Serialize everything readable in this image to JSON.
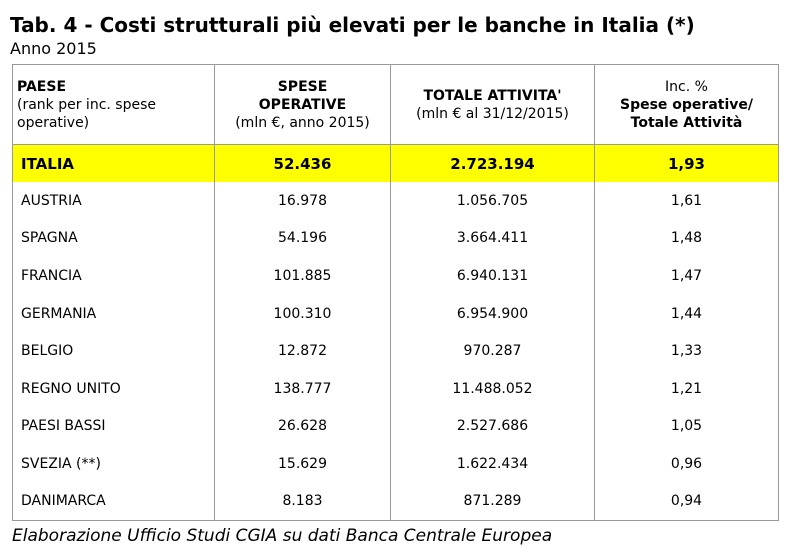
{
  "chart_data": {
    "type": "table",
    "title": "Tab. 4 - Costi strutturali più elevati per le banche in Italia (*)",
    "subtitle": "Anno 2015",
    "headers": {
      "country": {
        "title": "PAESE",
        "note1": "(rank per inc. spese",
        "note2": "operative)"
      },
      "expenses": {
        "title1": "SPESE",
        "title2": "OPERATIVE",
        "unit": "(mln €, anno 2015)"
      },
      "assets": {
        "title": "TOTALE ATTIVITA'",
        "unit": "(mln € al 31/12/2015)"
      },
      "ratio": {
        "line1": "Inc. %",
        "line2": "Spese operative/",
        "line3": "Totale Attività"
      }
    },
    "rows": [
      {
        "country": "ITALIA",
        "expenses": "52.436",
        "assets": "2.723.194",
        "ratio": "1,93",
        "highlight": true
      },
      {
        "country": "AUSTRIA",
        "expenses": "16.978",
        "assets": "1.056.705",
        "ratio": "1,61"
      },
      {
        "country": "SPAGNA",
        "expenses": "54.196",
        "assets": "3.664.411",
        "ratio": "1,48"
      },
      {
        "country": "FRANCIA",
        "expenses": "101.885",
        "assets": "6.940.131",
        "ratio": "1,47"
      },
      {
        "country": "GERMANIA",
        "expenses": "100.310",
        "assets": "6.954.900",
        "ratio": "1,44"
      },
      {
        "country": "BELGIO",
        "expenses": "12.872",
        "assets": "970.287",
        "ratio": "1,33"
      },
      {
        "country": "REGNO UNITO",
        "expenses": "138.777",
        "assets": "11.488.052",
        "ratio": "1,21"
      },
      {
        "country": "PAESI BASSI",
        "expenses": "26.628",
        "assets": "2.527.686",
        "ratio": "1,05"
      },
      {
        "country": "SVEZIA (**)",
        "expenses": "15.629",
        "assets": "1.622.434",
        "ratio": "0,96"
      },
      {
        "country": "DANIMARCA",
        "expenses": "8.183",
        "assets": "871.289",
        "ratio": "0,94"
      }
    ],
    "source": "Elaborazione Ufficio Studi CGIA su dati Banca Centrale Europea",
    "colors": {
      "highlight": "#ffff00",
      "border": "#999999"
    }
  }
}
